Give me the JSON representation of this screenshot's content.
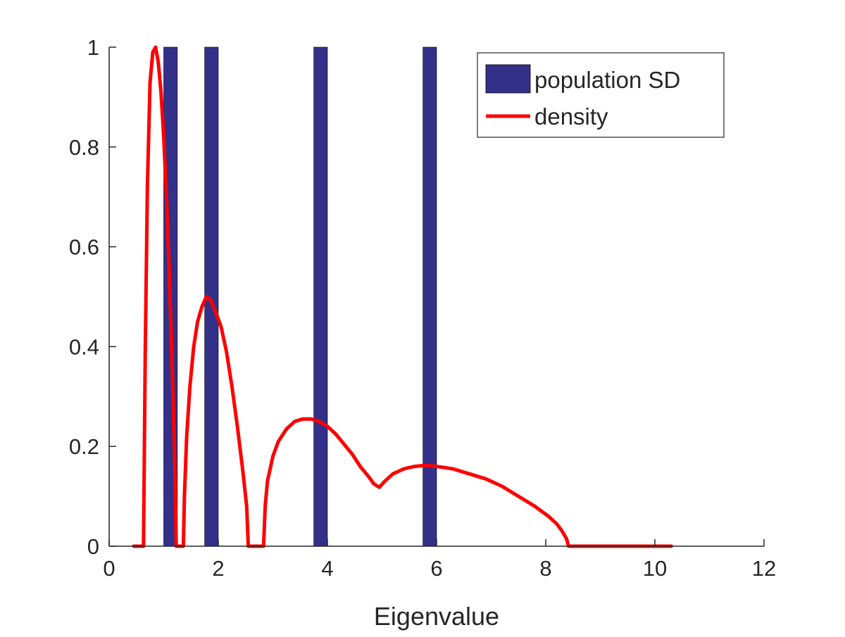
{
  "chart_data": {
    "type": "bar",
    "xlabel": "Eigenvalue",
    "ylabel": "",
    "xlim": [
      0,
      12
    ],
    "ylim": [
      0,
      1
    ],
    "xticks": [
      "0",
      "2",
      "4",
      "6",
      "8",
      "10",
      "12"
    ],
    "yticks": [
      "0",
      "0.2",
      "0.4",
      "0.6",
      "0.8",
      "1"
    ],
    "bars": {
      "name": "population SD",
      "color": "#33308A",
      "x": [
        1.125,
        1.875,
        3.875,
        5.875
      ],
      "values": [
        1,
        1,
        1,
        1
      ],
      "width": 0.25
    },
    "line": {
      "name": "density",
      "color": "#FF0000",
      "points": [
        [
          0.45,
          0
        ],
        [
          0.63,
          0
        ],
        [
          0.66,
          0.38
        ],
        [
          0.7,
          0.72
        ],
        [
          0.75,
          0.93
        ],
        [
          0.8,
          0.99
        ],
        [
          0.85,
          1.0
        ],
        [
          0.9,
          0.97
        ],
        [
          0.95,
          0.91
        ],
        [
          1.0,
          0.82
        ],
        [
          1.05,
          0.7
        ],
        [
          1.1,
          0.55
        ],
        [
          1.15,
          0.38
        ],
        [
          1.2,
          0.18
        ],
        [
          1.23,
          0
        ],
        [
          1.36,
          0
        ],
        [
          1.38,
          0.1
        ],
        [
          1.42,
          0.22
        ],
        [
          1.48,
          0.32
        ],
        [
          1.55,
          0.4
        ],
        [
          1.62,
          0.45
        ],
        [
          1.7,
          0.48
        ],
        [
          1.78,
          0.5
        ],
        [
          1.85,
          0.495
        ],
        [
          1.95,
          0.47
        ],
        [
          2.05,
          0.44
        ],
        [
          2.15,
          0.39
        ],
        [
          2.25,
          0.32
        ],
        [
          2.35,
          0.24
        ],
        [
          2.45,
          0.15
        ],
        [
          2.52,
          0.08
        ],
        [
          2.55,
          0
        ],
        [
          2.83,
          0
        ],
        [
          2.86,
          0.08
        ],
        [
          2.9,
          0.13
        ],
        [
          3.0,
          0.18
        ],
        [
          3.1,
          0.21
        ],
        [
          3.25,
          0.235
        ],
        [
          3.4,
          0.25
        ],
        [
          3.55,
          0.255
        ],
        [
          3.7,
          0.255
        ],
        [
          3.85,
          0.25
        ],
        [
          4.0,
          0.24
        ],
        [
          4.15,
          0.225
        ],
        [
          4.3,
          0.205
        ],
        [
          4.45,
          0.185
        ],
        [
          4.6,
          0.16
        ],
        [
          4.75,
          0.14
        ],
        [
          4.85,
          0.125
        ],
        [
          4.95,
          0.118
        ],
        [
          5.05,
          0.13
        ],
        [
          5.2,
          0.145
        ],
        [
          5.4,
          0.155
        ],
        [
          5.6,
          0.16
        ],
        [
          5.8,
          0.162
        ],
        [
          6.0,
          0.16
        ],
        [
          6.3,
          0.155
        ],
        [
          6.6,
          0.145
        ],
        [
          6.9,
          0.135
        ],
        [
          7.2,
          0.12
        ],
        [
          7.5,
          0.1
        ],
        [
          7.8,
          0.08
        ],
        [
          8.05,
          0.06
        ],
        [
          8.2,
          0.045
        ],
        [
          8.3,
          0.03
        ],
        [
          8.38,
          0.015
        ],
        [
          8.42,
          0
        ],
        [
          10.3,
          0
        ]
      ]
    },
    "legend": {
      "position": "top-right",
      "entries": [
        "population SD",
        "density"
      ]
    },
    "grid": false
  }
}
